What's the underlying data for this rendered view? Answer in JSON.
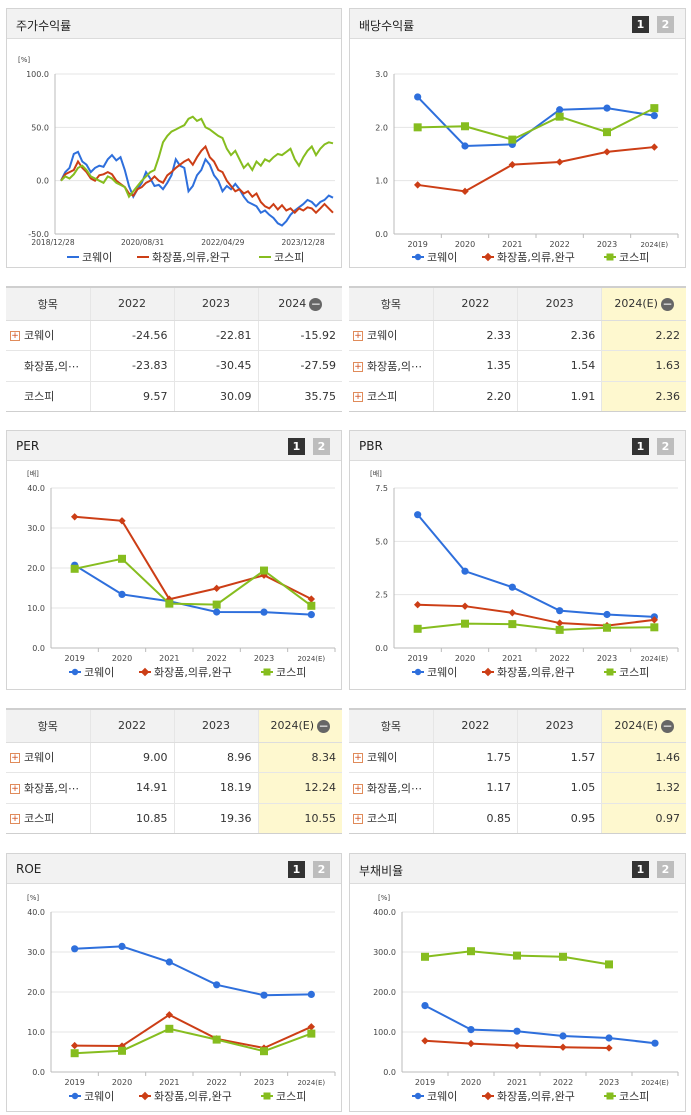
{
  "colors": {
    "coway": "#2e6fdc",
    "cosmetics": "#cc3e16",
    "kospi": "#86bd1f"
  },
  "legend": [
    "코웨이",
    "화장품,의류,완구",
    "코스피"
  ],
  "pager": [
    "1",
    "2"
  ],
  "panels": {
    "stock": {
      "title": "주가수익률"
    },
    "dividend": {
      "title": "배당수익률"
    },
    "per": {
      "title": "PER"
    },
    "pbr": {
      "title": "PBR"
    },
    "roe": {
      "title": "ROE"
    },
    "debt": {
      "title": "부채비율"
    }
  },
  "tables": {
    "stock": {
      "head": [
        "항목",
        "2022",
        "2023",
        "2024"
      ],
      "rows": [
        {
          "name": "코웨이",
          "plus": true,
          "v": [
            "-24.56",
            "-22.81",
            "-15.92"
          ]
        },
        {
          "name": "화장품,의⋯",
          "plus": false,
          "v": [
            "-23.83",
            "-30.45",
            "-27.59"
          ]
        },
        {
          "name": "코스피",
          "plus": false,
          "v": [
            "9.57",
            "30.09",
            "35.75"
          ]
        }
      ]
    },
    "dividend": {
      "head": [
        "항목",
        "2022",
        "2023",
        "2024(E)"
      ],
      "rows": [
        {
          "name": "코웨이",
          "plus": true,
          "v": [
            "2.33",
            "2.36",
            "2.22"
          ]
        },
        {
          "name": "화장품,의⋯",
          "plus": true,
          "v": [
            "1.35",
            "1.54",
            "1.63"
          ]
        },
        {
          "name": "코스피",
          "plus": true,
          "v": [
            "2.20",
            "1.91",
            "2.36"
          ]
        }
      ]
    },
    "per": {
      "head": [
        "항목",
        "2022",
        "2023",
        "2024(E)"
      ],
      "rows": [
        {
          "name": "코웨이",
          "plus": true,
          "v": [
            "9.00",
            "8.96",
            "8.34"
          ]
        },
        {
          "name": "화장품,의⋯",
          "plus": true,
          "v": [
            "14.91",
            "18.19",
            "12.24"
          ]
        },
        {
          "name": "코스피",
          "plus": true,
          "v": [
            "10.85",
            "19.36",
            "10.55"
          ]
        }
      ]
    },
    "pbr": {
      "head": [
        "항목",
        "2022",
        "2023",
        "2024(E)"
      ],
      "rows": [
        {
          "name": "코웨이",
          "plus": true,
          "v": [
            "1.75",
            "1.57",
            "1.46"
          ]
        },
        {
          "name": "화장품,의⋯",
          "plus": true,
          "v": [
            "1.17",
            "1.05",
            "1.32"
          ]
        },
        {
          "name": "코스피",
          "plus": true,
          "v": [
            "0.85",
            "0.95",
            "0.97"
          ]
        }
      ]
    }
  },
  "chart_data": [
    {
      "id": "stock",
      "type": "line",
      "title": "주가수익률",
      "ylabel": "[%]",
      "ylim": [
        -50,
        100
      ],
      "yticks": [
        "100.0",
        "50.0",
        "0.0",
        "-50.0"
      ],
      "x_ticks": [
        "2018/12/28",
        "2020/08/31",
        "2022/04/29",
        "2023/12/28"
      ],
      "series": [
        {
          "name": "코웨이",
          "values": [
            0,
            8,
            12,
            25,
            27,
            18,
            15,
            8,
            12,
            14,
            13,
            20,
            24,
            19,
            22,
            10,
            -5,
            -15,
            -8,
            -2,
            8,
            2,
            -5,
            -4,
            -8,
            -2,
            5,
            20,
            14,
            12,
            -10,
            -5,
            5,
            10,
            20,
            15,
            5,
            0,
            -10,
            -5,
            -8,
            -3,
            -8,
            -15,
            -20,
            -22,
            -24,
            -30,
            -28,
            -32,
            -35,
            -40,
            -42,
            -38,
            -32,
            -28,
            -25,
            -22,
            -18,
            -20,
            -24,
            -20,
            -18,
            -14,
            -16
          ]
        },
        {
          "name": "화장품,의류,완구",
          "values": [
            0,
            6,
            8,
            10,
            18,
            12,
            8,
            2,
            0,
            5,
            6,
            8,
            6,
            0,
            -3,
            -6,
            -12,
            -14,
            -8,
            -6,
            -2,
            0,
            4,
            0,
            -2,
            5,
            8,
            12,
            15,
            18,
            20,
            15,
            22,
            28,
            32,
            22,
            18,
            10,
            8,
            0,
            -5,
            -10,
            -8,
            -12,
            -10,
            -15,
            -12,
            -20,
            -24,
            -26,
            -22,
            -27,
            -23,
            -28,
            -26,
            -30,
            -26,
            -28,
            -25,
            -26,
            -30,
            -26,
            -22,
            -26,
            -30
          ]
        },
        {
          "name": "코스피",
          "values": [
            0,
            4,
            2,
            6,
            12,
            14,
            10,
            4,
            2,
            0,
            -2,
            4,
            2,
            -2,
            -4,
            -6,
            -15,
            -10,
            -5,
            0,
            4,
            8,
            10,
            22,
            36,
            42,
            46,
            48,
            50,
            52,
            58,
            60,
            56,
            58,
            50,
            48,
            45,
            42,
            40,
            30,
            24,
            28,
            20,
            12,
            16,
            10,
            18,
            14,
            20,
            18,
            22,
            25,
            24,
            27,
            30,
            20,
            14,
            22,
            28,
            32,
            24,
            30,
            34,
            36,
            35
          ]
        }
      ]
    },
    {
      "id": "dividend",
      "type": "line",
      "title": "배당수익률",
      "ylim": [
        0,
        3
      ],
      "yticks": [
        "3.0",
        "2.0",
        "1.0",
        "0.0"
      ],
      "categories": [
        "2019",
        "2020",
        "2021",
        "2022",
        "2023",
        "2024(E)"
      ],
      "series": [
        {
          "name": "코웨이",
          "values": [
            2.57,
            1.65,
            1.68,
            2.33,
            2.36,
            2.22
          ]
        },
        {
          "name": "화장품,의류,완구",
          "values": [
            0.92,
            0.8,
            1.3,
            1.35,
            1.54,
            1.63
          ]
        },
        {
          "name": "코스피",
          "values": [
            2.0,
            2.02,
            1.77,
            2.2,
            1.91,
            2.36
          ]
        }
      ]
    },
    {
      "id": "per",
      "type": "line",
      "title": "PER",
      "ylabel": "[배]",
      "ylim": [
        0,
        40
      ],
      "yticks": [
        "40.0",
        "30.0",
        "20.0",
        "10.0",
        "0.0"
      ],
      "categories": [
        "2019",
        "2020",
        "2021",
        "2022",
        "2023",
        "2024(E)"
      ],
      "series": [
        {
          "name": "코웨이",
          "values": [
            20.7,
            13.4,
            11.7,
            9.0,
            8.96,
            8.34
          ]
        },
        {
          "name": "화장품,의류,완구",
          "values": [
            32.8,
            31.8,
            12.2,
            14.91,
            18.19,
            12.24
          ]
        },
        {
          "name": "코스피",
          "values": [
            19.8,
            22.3,
            11.1,
            10.85,
            19.36,
            10.55
          ]
        }
      ]
    },
    {
      "id": "pbr",
      "type": "line",
      "title": "PBR",
      "ylabel": "[배]",
      "ylim": [
        0,
        7.5
      ],
      "yticks": [
        "7.5",
        "5.0",
        "2.5",
        "0.0"
      ],
      "categories": [
        "2019",
        "2020",
        "2021",
        "2022",
        "2023",
        "2024(E)"
      ],
      "series": [
        {
          "name": "코웨이",
          "values": [
            6.25,
            3.6,
            2.85,
            1.75,
            1.57,
            1.46
          ]
        },
        {
          "name": "화장품,의류,완구",
          "values": [
            2.03,
            1.96,
            1.65,
            1.17,
            1.05,
            1.32
          ]
        },
        {
          "name": "코스피",
          "values": [
            0.9,
            1.14,
            1.12,
            0.85,
            0.95,
            0.97
          ]
        }
      ]
    },
    {
      "id": "roe",
      "type": "line",
      "title": "ROE",
      "ylabel": "[%]",
      "ylim": [
        0,
        40
      ],
      "yticks": [
        "40.0",
        "30.0",
        "20.0",
        "10.0",
        "0.0"
      ],
      "categories": [
        "2019",
        "2020",
        "2021",
        "2022",
        "2023",
        "2024(E)"
      ],
      "series": [
        {
          "name": "코웨이",
          "values": [
            30.8,
            31.4,
            27.5,
            21.8,
            19.2,
            19.4
          ]
        },
        {
          "name": "화장품,의류,완구",
          "values": [
            6.6,
            6.5,
            14.3,
            8.3,
            6.0,
            11.3
          ]
        },
        {
          "name": "코스피",
          "values": [
            4.7,
            5.3,
            10.8,
            8.1,
            5.2,
            9.6
          ]
        }
      ]
    },
    {
      "id": "debt",
      "type": "line",
      "title": "부채비율",
      "ylabel": "[%]",
      "ylim": [
        0,
        400
      ],
      "yticks": [
        "400.0",
        "300.0",
        "200.0",
        "100.0",
        "0.0"
      ],
      "categories": [
        "2019",
        "2020",
        "2021",
        "2022",
        "2023",
        "2024(E)"
      ],
      "series": [
        {
          "name": "코웨이",
          "values": [
            166,
            106,
            102,
            90,
            85,
            72
          ]
        },
        {
          "name": "화장품,의류,완구",
          "values": [
            78,
            71,
            66,
            62,
            60,
            null
          ]
        },
        {
          "name": "코스피",
          "values": [
            288,
            302,
            291,
            288,
            269,
            null
          ]
        }
      ]
    }
  ]
}
